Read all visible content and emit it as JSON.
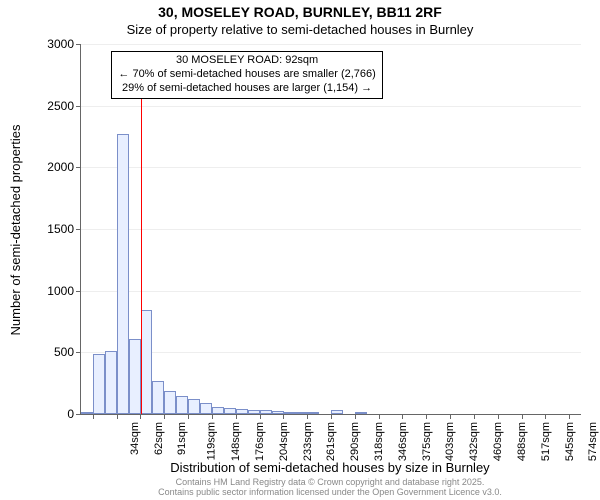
{
  "chart": {
    "type": "histogram",
    "title": "30, MOSELEY ROAD, BURNLEY, BB11 2RF",
    "subtitle": "Size of property relative to semi-detached houses in Burnley",
    "ylabel": "Number of semi-detached properties",
    "xlabel": "Distribution of semi-detached houses by size in Burnley",
    "background_color": "#ffffff",
    "grid_color": "#eeeeee",
    "axis_color": "#666666",
    "bar_fill": "#e8efff",
    "bar_border": "#7b8fc9",
    "title_fontsize": 14,
    "subtitle_fontsize": 13,
    "label_fontsize": 13,
    "tick_fontsize": 12,
    "xtick_fontsize": 11,
    "annotation_fontsize": 11,
    "ylim": [
      0,
      3000
    ],
    "ytick_step": 500,
    "xlim": [
      20,
      616
    ],
    "bin_width": 14.2,
    "xtick_step": 28.4,
    "xtick_start": 34,
    "xtick_suffix": "sqm",
    "xtick_count": 21,
    "bars": [
      {
        "start": 20.0,
        "count": 10
      },
      {
        "start": 34.2,
        "count": 490
      },
      {
        "start": 48.4,
        "count": 510
      },
      {
        "start": 62.6,
        "count": 2270
      },
      {
        "start": 76.8,
        "count": 610
      },
      {
        "start": 91.0,
        "count": 840
      },
      {
        "start": 105.2,
        "count": 270
      },
      {
        "start": 119.4,
        "count": 190
      },
      {
        "start": 133.6,
        "count": 150
      },
      {
        "start": 147.8,
        "count": 120
      },
      {
        "start": 162.0,
        "count": 90
      },
      {
        "start": 176.2,
        "count": 60
      },
      {
        "start": 190.4,
        "count": 50
      },
      {
        "start": 204.6,
        "count": 40
      },
      {
        "start": 218.8,
        "count": 30
      },
      {
        "start": 233.0,
        "count": 30
      },
      {
        "start": 247.2,
        "count": 25
      },
      {
        "start": 261.4,
        "count": 20
      },
      {
        "start": 275.6,
        "count": 15
      },
      {
        "start": 289.8,
        "count": 15
      },
      {
        "start": 304.0,
        "count": 0
      },
      {
        "start": 318.2,
        "count": 30
      },
      {
        "start": 332.4,
        "count": 0
      },
      {
        "start": 346.6,
        "count": 15
      }
    ],
    "marker": {
      "value": 92,
      "color": "#ff0000",
      "height_value": 2740
    },
    "annotation": {
      "line1": "30 MOSELEY ROAD: 92sqm",
      "line2": "← 70% of semi-detached houses are smaller (2,766)",
      "line3": "29% of semi-detached houses are larger (1,154) →",
      "border_color": "#000000",
      "bg_color": "#ffffff"
    },
    "credits": {
      "line1": "Contains HM Land Registry data © Crown copyright and database right 2025.",
      "line2": "Contains public sector information licensed under the Open Government Licence v3.0.",
      "color": "#888888",
      "fontsize": 9
    }
  }
}
